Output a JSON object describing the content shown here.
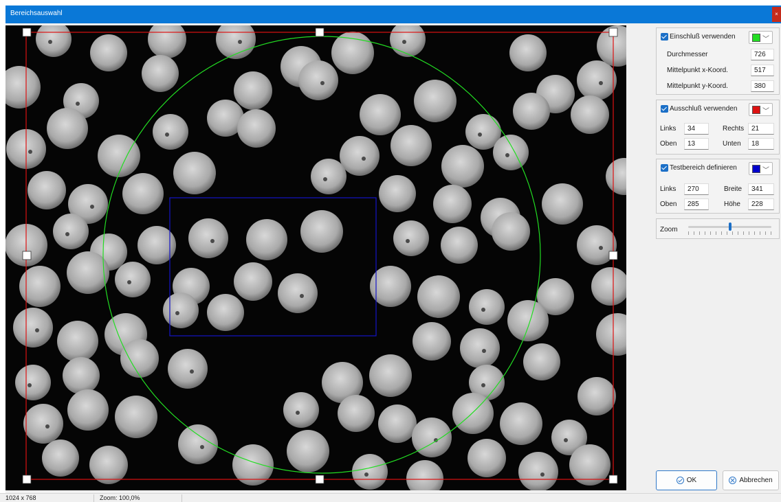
{
  "window": {
    "title": "Bereichsauswahl",
    "close_glyph": "×"
  },
  "colors": {
    "inclusion": "#22dd22",
    "exclusion": "#dd1111",
    "test_area": "#0000cc",
    "accent": "#1b6fc7"
  },
  "inclusion": {
    "label": "Einschluß verwenden",
    "checked": true,
    "color": "#22dd22",
    "fields": [
      {
        "label": "Durchmesser",
        "value": "726"
      },
      {
        "label": "Mittelpunkt x-Koord.",
        "value": "517"
      },
      {
        "label": "Mittelpunkt y-Koord.",
        "value": "380"
      }
    ]
  },
  "exclusion": {
    "label": "Ausschluß verwenden",
    "checked": true,
    "color": "#dd1111",
    "links_label": "Links",
    "links_value": "34",
    "rechts_label": "Rechts",
    "rechts_value": "21",
    "oben_label": "Oben",
    "oben_value": "13",
    "unten_label": "Unten",
    "unten_value": "18"
  },
  "test_area": {
    "label": "Testbereich definieren",
    "checked": true,
    "color": "#0000cc",
    "links_label": "Links",
    "links_value": "270",
    "breite_label": "Breite",
    "breite_value": "341",
    "oben_label": "Oben",
    "oben_value": "285",
    "hoehe_label": "Höhe",
    "hoehe_value": "228"
  },
  "zoom_control": {
    "label": "Zoom",
    "level": 0.5
  },
  "buttons": {
    "ok": "OK",
    "cancel": "Abbrechen"
  },
  "statusbar": {
    "dimensions": "1024 x 768",
    "zoom": "Zoom: 100,0%"
  }
}
